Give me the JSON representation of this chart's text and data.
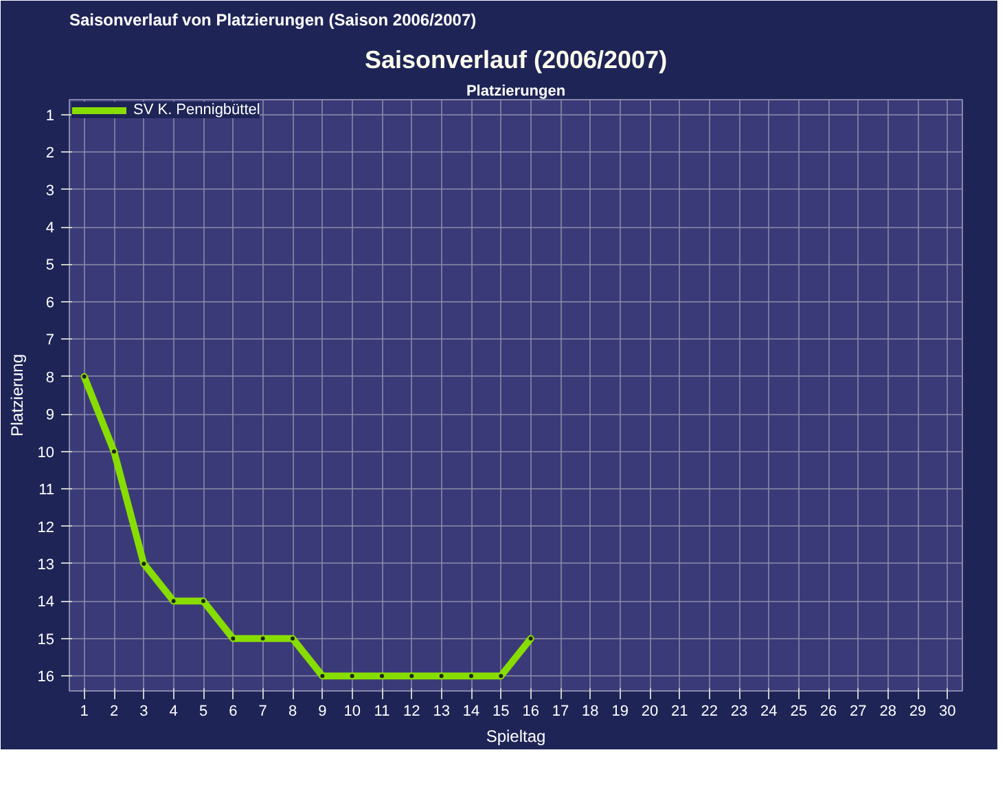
{
  "chart_data": {
    "type": "line",
    "title": "Saisonverlauf (2006/2007)",
    "subtitle": "Platzierungen",
    "xlabel": "Spieltag",
    "ylabel": "Platzierung",
    "annotations": [
      "Saisonverlauf von Platzierungen  (Saison 2006/2007)"
    ],
    "x": [
      1,
      2,
      3,
      4,
      5,
      6,
      7,
      8,
      9,
      10,
      11,
      12,
      13,
      14,
      15,
      16
    ],
    "series": [
      {
        "name": "SV K. Pennigbüttel",
        "color": "#88dd00",
        "values": [
          8,
          10,
          13,
          14,
          14,
          15,
          15,
          15,
          16,
          16,
          16,
          16,
          16,
          16,
          16,
          15
        ]
      }
    ],
    "xlim": [
      0.5,
      30.5
    ],
    "xticks": [
      1,
      2,
      3,
      4,
      5,
      6,
      7,
      8,
      9,
      10,
      11,
      12,
      13,
      14,
      15,
      16,
      17,
      18,
      19,
      20,
      21,
      22,
      23,
      24,
      25,
      26,
      27,
      28,
      29,
      30
    ],
    "ylim": [
      16.4,
      0.6
    ],
    "yticks": [
      1,
      2,
      3,
      4,
      5,
      6,
      7,
      8,
      9,
      10,
      11,
      12,
      13,
      14,
      15,
      16
    ],
    "grid": true,
    "legend": "top left",
    "marker": "circle",
    "line_style": "solid"
  }
}
